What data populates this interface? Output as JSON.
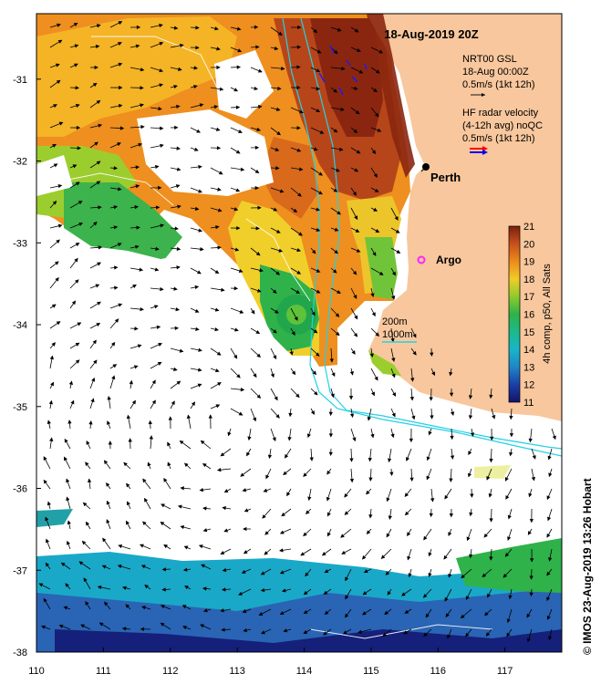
{
  "map": {
    "title": "18-Aug-2019 20Z",
    "credit": "© IMOS 23-Aug-2019 13:26 Hobart",
    "x_ticks": [
      "110",
      "111",
      "112",
      "113",
      "114",
      "115",
      "116",
      "117"
    ],
    "y_ticks": [
      "-31",
      "-32",
      "-33",
      "-34",
      "-35",
      "-36",
      "-37",
      "-38"
    ],
    "xlim": [
      110,
      117.85
    ],
    "ylim": [
      -38,
      -30.2
    ],
    "places": [
      {
        "name": "Perth",
        "lon": 115.86,
        "lat": -31.95,
        "marker": "dot"
      },
      {
        "name": "Argo",
        "lon": 115.8,
        "lat": -33.12,
        "marker": "star"
      }
    ]
  },
  "legend": {
    "nrt_label": "NRT00 GSL",
    "nrt_date": "18-Aug 00:00Z",
    "nrt_scale": "0.5m/s (1kt 12h)",
    "hf_label": "HF radar velocity",
    "hf_sub": "(4-12h avg) noQC",
    "hf_scale": "0.5m/s (1kt 12h)",
    "contour_200": "200m",
    "contour_1000": "1000m"
  },
  "colorbar": {
    "label": "4h comp, p50, All Sats",
    "ticks": [
      "11",
      "12",
      "13",
      "14",
      "15",
      "16",
      "17",
      "18",
      "19",
      "20",
      "21"
    ],
    "range": [
      11,
      21
    ]
  },
  "colors": {
    "land": "#f8c79d",
    "contour": "#25d0e6",
    "nrt_arrow": "#000000",
    "hf_arrow_red": "#ff0000",
    "hf_arrow_blue": "#0000ff",
    "argo": "#ff22ff"
  }
}
